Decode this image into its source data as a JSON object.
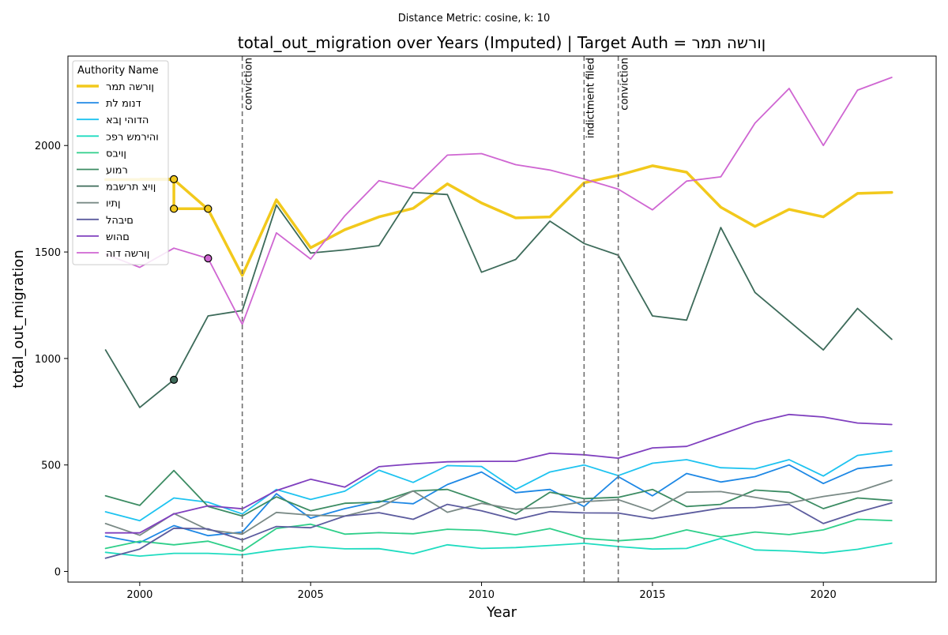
{
  "chart_data": {
    "type": "line",
    "suptitle": "Distance Metric: cosine, k: 10",
    "title": "total_out_migration over Years (Imputed) | Target Auth = ןורשה תמר",
    "xlabel": "Year",
    "ylabel": "total_out_migration",
    "xlim": [
      1997.9,
      2023.3
    ],
    "ylim": [
      -50,
      2420
    ],
    "xticks": [
      2000,
      2005,
      2010,
      2015,
      2020
    ],
    "yticks": [
      0,
      500,
      1000,
      1500,
      2000
    ],
    "grid": false,
    "legend": {
      "title": "Authority Name",
      "position": "top-left"
    },
    "years": [
      1999,
      2000,
      2001,
      2002,
      2003,
      2004,
      2005,
      2006,
      2007,
      2008,
      2009,
      2010,
      2011,
      2012,
      2013,
      2014,
      2015,
      2016,
      2017,
      2018,
      2019,
      2020,
      2021,
      2022
    ],
    "series": [
      {
        "name": "ןורשה תמר",
        "color": "#f2c91c",
        "width": 3.5,
        "target": true,
        "values": [
          1840,
          1840,
          1840,
          1700,
          1390,
          1745,
          1520,
          1605,
          1665,
          1705,
          1820,
          1730,
          1660,
          1665,
          1825,
          1860,
          1905,
          1875,
          1710,
          1620,
          1700,
          1665,
          1775,
          1780
        ]
      },
      {
        "name": "דנומ לת",
        "color": "#1e88e5",
        "width": 1.8,
        "values": [
          165,
          135,
          215,
          168,
          185,
          365,
          250,
          295,
          330,
          318,
          408,
          467,
          370,
          385,
          305,
          445,
          355,
          460,
          420,
          445,
          500,
          413,
          483,
          500
        ]
      },
      {
        "name": "הדוהי ןבא",
        "color": "#1ec3f0",
        "width": 1.8,
        "values": [
          280,
          238,
          345,
          325,
          270,
          385,
          338,
          377,
          475,
          418,
          497,
          493,
          385,
          467,
          500,
          450,
          508,
          525,
          487,
          482,
          525,
          448,
          545,
          565
        ]
      },
      {
        "name": "והירמש רפכ",
        "color": "#1fdcc0",
        "width": 1.8,
        "values": [
          90,
          72,
          85,
          85,
          78,
          101,
          117,
          106,
          107,
          83,
          125,
          108,
          112,
          122,
          132,
          117,
          105,
          108,
          155,
          101,
          96,
          86,
          104,
          133
        ]
      },
      {
        "name": "ןויבס",
        "color": "#2fcf8a",
        "width": 1.8,
        "values": [
          108,
          142,
          125,
          142,
          95,
          202,
          222,
          175,
          182,
          177,
          198,
          193,
          172,
          201,
          155,
          144,
          155,
          195,
          162,
          185,
          173,
          195,
          245,
          239
        ]
      },
      {
        "name": "רמוע",
        "color": "#3c8c63",
        "width": 1.8,
        "values": [
          355,
          310,
          474,
          305,
          260,
          350,
          285,
          320,
          325,
          378,
          385,
          330,
          270,
          372,
          342,
          348,
          385,
          305,
          315,
          382,
          372,
          295,
          345,
          333
        ]
      },
      {
        "name": "ןויצ תרשבמ",
        "color": "#3d6b5a",
        "width": 1.8,
        "markers": [
          {
            "x": 2001,
            "y": 900
          }
        ],
        "values": [
          1040,
          770,
          900,
          1200,
          1225,
          1720,
          1495,
          1510,
          1530,
          1780,
          1770,
          1405,
          1465,
          1645,
          1540,
          1485,
          1200,
          1180,
          1615,
          1310,
          1175,
          1040,
          1235,
          1090
        ]
      },
      {
        "name": "ןתיו",
        "color": "#7a8a86",
        "width": 1.8,
        "values": [
          225,
          170,
          272,
          195,
          175,
          277,
          264,
          260,
          300,
          378,
          278,
          320,
          292,
          302,
          328,
          337,
          283,
          372,
          375,
          348,
          322,
          352,
          375,
          428
        ]
      },
      {
        "name": "םיבהל",
        "color": "#5c5c9e",
        "width": 1.8,
        "values": [
          62,
          105,
          203,
          200,
          148,
          211,
          205,
          260,
          276,
          245,
          315,
          285,
          243,
          281,
          275,
          274,
          248,
          272,
          297,
          300,
          315,
          225,
          278,
          322
        ]
      },
      {
        "name": "םהוש",
        "color": "#8040bf",
        "width": 1.8,
        "values": [
          181,
          181,
          270,
          308,
          294,
          380,
          433,
          396,
          492,
          505,
          515,
          517,
          517,
          555,
          548,
          532,
          580,
          587,
          643,
          700,
          737,
          725,
          697,
          690
        ]
      },
      {
        "name": "ןורשה דוה",
        "color": "#cf66d2",
        "width": 1.8,
        "markers": [
          {
            "x": 2002,
            "y": 1470
          }
        ],
        "values": [
          1490,
          1428,
          1518,
          1470,
          1160,
          1590,
          1467,
          1670,
          1835,
          1797,
          1955,
          1962,
          1910,
          1885,
          1843,
          1795,
          1698,
          1833,
          1853,
          2105,
          2268,
          2000,
          2260,
          2320
        ]
      }
    ],
    "target_markers": [
      {
        "x": 2001,
        "y": 1842
      },
      {
        "x": 2001,
        "y": 1703
      },
      {
        "x": 2002,
        "y": 1703
      }
    ],
    "events": [
      {
        "year": 2003,
        "label": "conviction"
      },
      {
        "year": 2013,
        "label": "indictment filed"
      },
      {
        "year": 2014,
        "label": "conviction"
      }
    ]
  }
}
